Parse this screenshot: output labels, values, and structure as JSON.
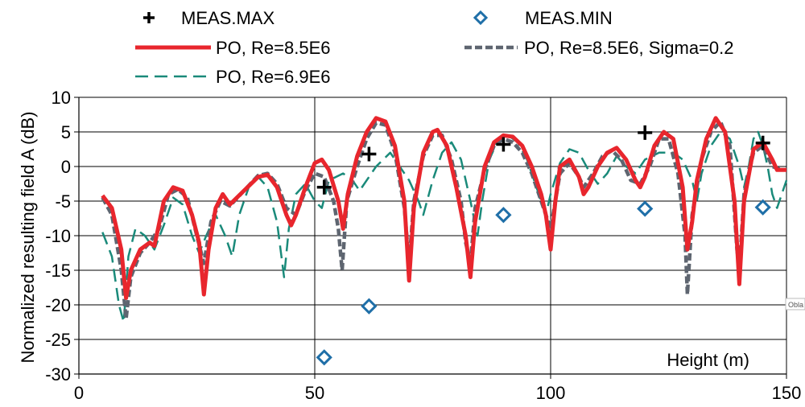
{
  "chart_data": {
    "type": "line",
    "title": "",
    "xlabel": "Height (m)",
    "ylabel": "Normalized resulting field A (dB)",
    "xlim": [
      0,
      150
    ],
    "ylim": [
      -30,
      10
    ],
    "x_ticks": [
      0,
      50,
      100,
      150
    ],
    "y_ticks": [
      10,
      5,
      0,
      -5,
      -10,
      -15,
      -20,
      -25,
      -30
    ],
    "grid": true,
    "legend_placement": "top",
    "side_tag": "Obla",
    "series": [
      {
        "name": "MEAS.MAX",
        "kind": "marker-plus",
        "color": "#000000",
        "points": [
          [
            52,
            -3
          ],
          [
            61.5,
            1.8
          ],
          [
            90,
            3.2
          ],
          [
            120,
            4.9
          ],
          [
            145,
            3.4
          ]
        ]
      },
      {
        "name": "MEAS.MIN",
        "kind": "marker-diamond",
        "color": "#1f6fa8",
        "points": [
          [
            52,
            -27.6
          ],
          [
            61.5,
            -20.2
          ],
          [
            90,
            -7
          ],
          [
            120,
            -6.1
          ],
          [
            145,
            -5.9
          ]
        ]
      },
      {
        "name": "PO, Re=8.5E6",
        "kind": "line-solid",
        "color": "#e8262d",
        "points": [
          [
            5,
            -4.2
          ],
          [
            7,
            -6
          ],
          [
            9,
            -12
          ],
          [
            10,
            -19
          ],
          [
            11,
            -15
          ],
          [
            13,
            -12
          ],
          [
            15,
            -11
          ],
          [
            16,
            -11.5
          ],
          [
            18,
            -5
          ],
          [
            20,
            -3
          ],
          [
            22,
            -3.5
          ],
          [
            24,
            -7
          ],
          [
            25.5,
            -11
          ],
          [
            26.5,
            -18.5
          ],
          [
            27.5,
            -12
          ],
          [
            29,
            -6
          ],
          [
            30.5,
            -4
          ],
          [
            32,
            -5.5
          ],
          [
            35,
            -3.5
          ],
          [
            38,
            -1.5
          ],
          [
            40,
            -1.2
          ],
          [
            42,
            -3
          ],
          [
            44,
            -7
          ],
          [
            45,
            -8.5
          ],
          [
            46,
            -7
          ],
          [
            48,
            -3
          ],
          [
            50,
            0.5
          ],
          [
            51.5,
            1
          ],
          [
            53,
            -0.5
          ],
          [
            55,
            -5
          ],
          [
            56,
            -9
          ],
          [
            57,
            -4
          ],
          [
            59,
            1.5
          ],
          [
            61,
            5
          ],
          [
            63,
            7
          ],
          [
            65,
            6.5
          ],
          [
            67,
            3
          ],
          [
            69,
            -5
          ],
          [
            70,
            -16.5
          ],
          [
            71,
            -6
          ],
          [
            73,
            2
          ],
          [
            75,
            5
          ],
          [
            76,
            5.3
          ],
          [
            78,
            3
          ],
          [
            80,
            -3
          ],
          [
            82,
            -10
          ],
          [
            83,
            -16
          ],
          [
            84,
            -8
          ],
          [
            86,
            0
          ],
          [
            88,
            3.5
          ],
          [
            90,
            4.5
          ],
          [
            92,
            4.3
          ],
          [
            94,
            3
          ],
          [
            96,
            0
          ],
          [
            98,
            -4
          ],
          [
            99,
            -7
          ],
          [
            100,
            -12
          ],
          [
            101,
            -5
          ],
          [
            102,
            0
          ],
          [
            104,
            1
          ],
          [
            106,
            -1.5
          ],
          [
            107,
            -4
          ],
          [
            108,
            -3
          ],
          [
            110,
            0
          ],
          [
            112,
            2
          ],
          [
            114,
            2.7
          ],
          [
            116,
            1
          ],
          [
            118,
            -2
          ],
          [
            119,
            -3
          ],
          [
            120,
            -1.5
          ],
          [
            122,
            3
          ],
          [
            124,
            5
          ],
          [
            126,
            4
          ],
          [
            128,
            -3
          ],
          [
            129,
            -12
          ],
          [
            130,
            -8
          ],
          [
            131,
            -2
          ],
          [
            133,
            4
          ],
          [
            135,
            7
          ],
          [
            137,
            5
          ],
          [
            139,
            -5
          ],
          [
            140,
            -17
          ],
          [
            141,
            -5
          ],
          [
            143,
            2.5
          ],
          [
            145,
            3.5
          ],
          [
            147,
            1
          ],
          [
            148,
            -0.5
          ],
          [
            150,
            -0.5
          ]
        ]
      },
      {
        "name": "PO, Re=8.5E6, Sigma=0.2",
        "kind": "line-dash",
        "color": "#5e6570",
        "points": [
          [
            5,
            -4.5
          ],
          [
            7,
            -7
          ],
          [
            9,
            -15
          ],
          [
            10,
            -22
          ],
          [
            11,
            -16
          ],
          [
            13,
            -12.5
          ],
          [
            15,
            -11
          ],
          [
            17,
            -9
          ],
          [
            19,
            -4
          ],
          [
            21,
            -3.3
          ],
          [
            23,
            -4.5
          ],
          [
            25,
            -10
          ],
          [
            26.5,
            -14
          ],
          [
            28,
            -8
          ],
          [
            30,
            -5
          ],
          [
            32,
            -5.7
          ],
          [
            35,
            -3.5
          ],
          [
            38,
            -1.3
          ],
          [
            40,
            -1
          ],
          [
            42,
            -2.5
          ],
          [
            44,
            -6
          ],
          [
            46,
            -7
          ],
          [
            48,
            -3.5
          ],
          [
            50,
            -1
          ],
          [
            52,
            -1.5
          ],
          [
            54,
            -5
          ],
          [
            55,
            -9
          ],
          [
            55.8,
            -15
          ],
          [
            56.8,
            -5
          ],
          [
            59,
            0
          ],
          [
            61,
            4
          ],
          [
            63,
            6.3
          ],
          [
            65,
            6
          ],
          [
            67,
            2
          ],
          [
            69,
            -6
          ],
          [
            70,
            -14
          ],
          [
            71,
            -5
          ],
          [
            73,
            1.5
          ],
          [
            75,
            4.5
          ],
          [
            77,
            4.5
          ],
          [
            79,
            1
          ],
          [
            81,
            -5
          ],
          [
            82,
            -11
          ],
          [
            83,
            -14
          ],
          [
            84,
            -6
          ],
          [
            86,
            -0.5
          ],
          [
            88,
            3
          ],
          [
            90,
            4
          ],
          [
            92,
            3.5
          ],
          [
            94,
            2
          ],
          [
            96,
            -1
          ],
          [
            98,
            -5
          ],
          [
            100,
            -9
          ],
          [
            101,
            -5
          ],
          [
            102,
            -1
          ],
          [
            104,
            0.5
          ],
          [
            106,
            -1.5
          ],
          [
            107,
            -3
          ],
          [
            109,
            -1
          ],
          [
            111,
            1.5
          ],
          [
            113,
            2.3
          ],
          [
            115,
            1
          ],
          [
            117,
            -2
          ],
          [
            119,
            -2.5
          ],
          [
            121,
            0
          ],
          [
            123,
            4
          ],
          [
            125,
            4
          ],
          [
            127,
            -1
          ],
          [
            128.5,
            -10
          ],
          [
            129,
            -18.5
          ],
          [
            130,
            -7
          ],
          [
            132,
            1
          ],
          [
            134,
            5
          ],
          [
            136,
            6.5
          ],
          [
            138,
            3
          ],
          [
            139.5,
            -12
          ],
          [
            140,
            -15
          ],
          [
            141,
            -4
          ],
          [
            143,
            2
          ],
          [
            145,
            3
          ],
          [
            147,
            0
          ],
          [
            149,
            -0.5
          ],
          [
            150,
            -0.5
          ]
        ]
      },
      {
        "name": "PO, Re=6.9E6",
        "kind": "line-longdash",
        "color": "#1a8a7a",
        "points": [
          [
            5,
            -9.5
          ],
          [
            7,
            -13
          ],
          [
            8.5,
            -20
          ],
          [
            9.5,
            -22.5
          ],
          [
            10.5,
            -13
          ],
          [
            12,
            -9
          ],
          [
            14,
            -10
          ],
          [
            16,
            -12
          ],
          [
            18,
            -8.5
          ],
          [
            20,
            -4.5
          ],
          [
            22,
            -5.5
          ],
          [
            24,
            -10
          ],
          [
            25.5,
            -12.5
          ],
          [
            27,
            -10
          ],
          [
            29,
            -7
          ],
          [
            31,
            -10
          ],
          [
            32.5,
            -13
          ],
          [
            34,
            -7
          ],
          [
            36,
            -3
          ],
          [
            38,
            -1.5
          ],
          [
            40,
            -3
          ],
          [
            42,
            -8
          ],
          [
            43.5,
            -16
          ],
          [
            44.5,
            -9
          ],
          [
            46,
            -4
          ],
          [
            48,
            -2.5
          ],
          [
            50,
            -5
          ],
          [
            51.5,
            -6
          ],
          [
            53,
            -2
          ],
          [
            56,
            -1
          ],
          [
            58,
            -2
          ],
          [
            59.5,
            -3.5
          ],
          [
            61,
            -2
          ],
          [
            63,
            0
          ],
          [
            66,
            2
          ],
          [
            68,
            0
          ],
          [
            70,
            -2
          ],
          [
            72,
            -5
          ],
          [
            73,
            -7
          ],
          [
            75,
            -2
          ],
          [
            77,
            2
          ],
          [
            79,
            3.5
          ],
          [
            81,
            1
          ],
          [
            83,
            -5
          ],
          [
            84.5,
            -10
          ],
          [
            85.5,
            -5
          ],
          [
            87,
            1
          ],
          [
            89,
            4
          ],
          [
            91,
            4.5
          ],
          [
            93,
            3.5
          ],
          [
            95,
            1
          ],
          [
            97,
            -3
          ],
          [
            99,
            -7
          ],
          [
            100,
            -4
          ],
          [
            102,
            0.5
          ],
          [
            104,
            2.5
          ],
          [
            106,
            2
          ],
          [
            108,
            -0.5
          ],
          [
            110,
            -2.5
          ],
          [
            112,
            -1
          ],
          [
            114,
            1.5
          ],
          [
            116,
            0
          ],
          [
            118,
            -1
          ],
          [
            120,
            1
          ],
          [
            123,
            2
          ],
          [
            126,
            2
          ],
          [
            128,
            1
          ],
          [
            130,
            -2
          ],
          [
            131,
            -5
          ],
          [
            132,
            -1
          ],
          [
            134,
            3
          ],
          [
            136,
            5
          ],
          [
            138,
            4
          ],
          [
            140,
            0
          ],
          [
            141,
            -3
          ],
          [
            142,
            0
          ],
          [
            143,
            4
          ],
          [
            144,
            5
          ],
          [
            145,
            3
          ],
          [
            146,
            0
          ],
          [
            147,
            -4
          ],
          [
            148,
            -6
          ],
          [
            149,
            -4
          ],
          [
            150,
            -2
          ]
        ]
      }
    ]
  }
}
